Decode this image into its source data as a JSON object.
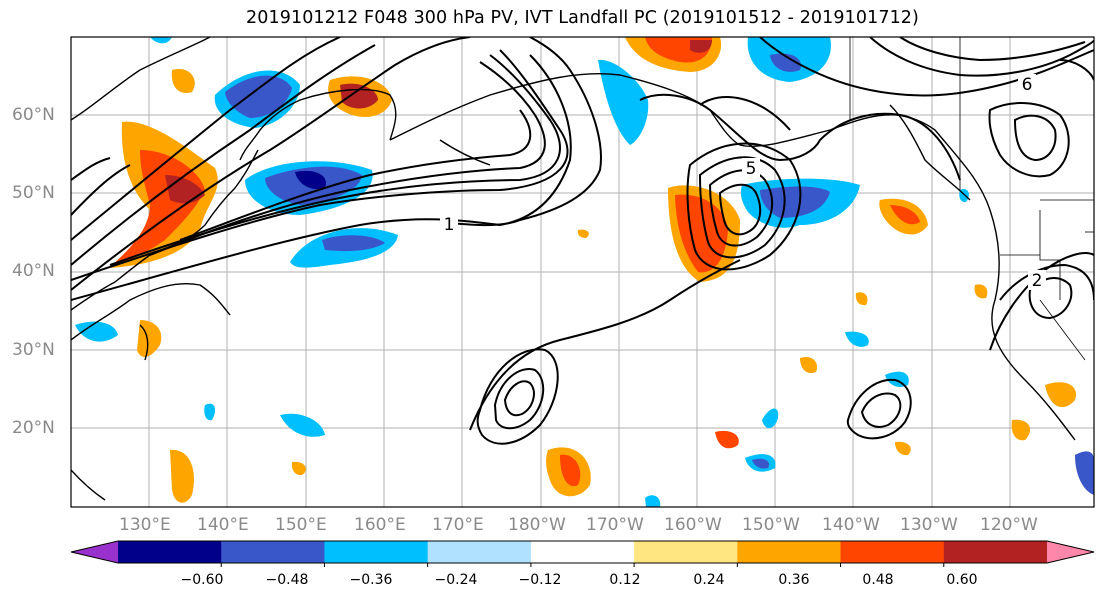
{
  "title": "2019101212 F048 300 hPa PV, IVT Landfall PC (2019101512 - 2019101712)",
  "lat_labels": [
    "60°N",
    "50°N",
    "40°N",
    "30°N",
    "20°N"
  ],
  "lon_labels": [
    "130°E",
    "140°E",
    "150°E",
    "160°E",
    "170°E",
    "180°W",
    "170°W",
    "160°W",
    "150°W",
    "140°W",
    "130°W",
    "120°W"
  ],
  "contour_labels": [
    "1",
    "5",
    "2",
    "6"
  ],
  "colorbar": {
    "ticks": [
      "−0.60",
      "−0.48",
      "−0.36",
      "−0.24",
      "−0.12",
      "0.12",
      "0.24",
      "0.36",
      "0.48",
      "0.60"
    ],
    "colors": [
      "#9932cc",
      "#00008b",
      "#3a57c9",
      "#00bfff",
      "#b0e2ff",
      "#ffffff",
      "#ffe680",
      "#ffa500",
      "#ff4500",
      "#b22222",
      "#ff88aa"
    ]
  }
}
